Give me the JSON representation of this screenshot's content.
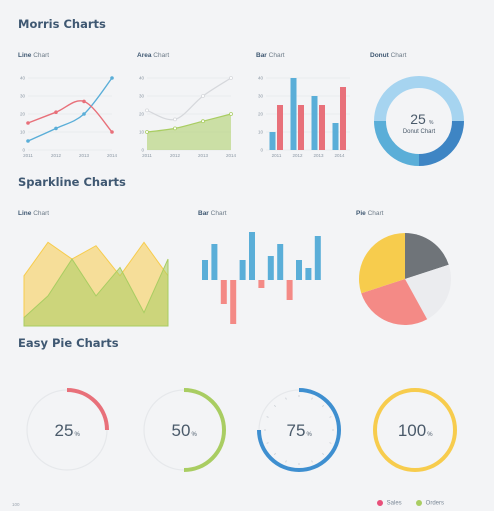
{
  "sections": {
    "morris": "Morris Charts",
    "sparkline": "Sparkline Charts",
    "easy_pie": "Easy Pie Charts"
  },
  "morris_labels": {
    "line": [
      "Line",
      "Chart"
    ],
    "area": [
      "Area",
      "Chart"
    ],
    "bar": [
      "Bar",
      "Chart"
    ],
    "donut": [
      "Donut",
      "Chart"
    ]
  },
  "sparkline_labels": {
    "line": [
      "Line",
      "Chart"
    ],
    "bar": [
      "Bar",
      "Chart"
    ],
    "pie": [
      "Pie",
      "Chart"
    ]
  },
  "colors": {
    "red": "#e8707a",
    "blue": "#5aaed8",
    "green": "#a9cd62",
    "yellow": "#f7cc4d",
    "gray": "#6f7479",
    "light_gray": "#ebecef",
    "pink": "#f48a86"
  },
  "chart_data": [
    {
      "id": "morris-line",
      "type": "line",
      "x": [
        "2011",
        "2012",
        "2013",
        "2014"
      ],
      "yticks": [
        "0",
        "10",
        "20",
        "30",
        "40"
      ],
      "ylim": [
        0,
        40
      ],
      "series": [
        {
          "values": [
            5,
            12,
            20,
            40
          ],
          "color": "#5aaed8"
        },
        {
          "values": [
            15,
            21,
            27,
            10
          ],
          "color": "#e8707a"
        }
      ]
    },
    {
      "id": "morris-area",
      "type": "area",
      "x": [
        "2011",
        "2012",
        "2013",
        "2014"
      ],
      "yticks": [
        "0",
        "10",
        "20",
        "30",
        "40"
      ],
      "ylim": [
        0,
        40
      ],
      "series": [
        {
          "values": [
            22,
            17,
            30,
            40
          ],
          "color": "#d6d8dc"
        },
        {
          "values": [
            10,
            12,
            16,
            20
          ],
          "color": "#a9cd62"
        }
      ]
    },
    {
      "id": "morris-bar",
      "type": "bar",
      "categories": [
        "2011",
        "2012",
        "2013",
        "2014"
      ],
      "yticks": [
        "0",
        "10",
        "20",
        "30",
        "40"
      ],
      "ylim": [
        0,
        40
      ],
      "series": [
        {
          "values": [
            10,
            40,
            30,
            15
          ],
          "color": "#5aaed8"
        },
        {
          "values": [
            25,
            25,
            25,
            35
          ],
          "color": "#e8707a"
        }
      ]
    },
    {
      "id": "morris-donut",
      "type": "pie",
      "center_value": "25",
      "center_unit": "%",
      "center_label": "Donut Chart",
      "values": [
        25,
        25,
        50
      ],
      "colors": [
        "#3e85c4",
        "#5aaed8",
        "#a6d4f0"
      ]
    },
    {
      "id": "spark-line",
      "type": "area",
      "series": [
        {
          "values": [
            30,
            50,
            40,
            48,
            30,
            50,
            30
          ],
          "color": "#f7cc4d"
        },
        {
          "values": [
            5,
            18,
            40,
            18,
            35,
            8,
            40
          ],
          "color": "#a9cd62"
        }
      ]
    },
    {
      "id": "spark-bar",
      "type": "bar",
      "values": [
        5,
        9,
        -6,
        -11,
        5,
        12,
        -2,
        6,
        9,
        -5,
        5,
        3,
        11
      ],
      "color_pos": "#5aaed8",
      "color_neg": "#f48a86"
    },
    {
      "id": "spark-pie",
      "type": "pie",
      "values": [
        20,
        22,
        28,
        30
      ],
      "colors": [
        "#6f7479",
        "#ebecef",
        "#f48a86",
        "#f7cc4d"
      ]
    },
    {
      "id": "easy-pie",
      "type": "pie",
      "items": [
        {
          "value": 25,
          "label": "25",
          "unit": "%",
          "color": "#e8707a"
        },
        {
          "value": 50,
          "label": "50",
          "unit": "%",
          "color": "#a9cd62"
        },
        {
          "value": 75,
          "label": "75",
          "unit": "%",
          "color": "#3e8fd0"
        },
        {
          "value": 100,
          "label": "100",
          "unit": "%",
          "color": "#f7cc4d"
        }
      ]
    }
  ],
  "legend": [
    {
      "label": "Sales",
      "color": "#e8507a"
    },
    {
      "label": "Orders",
      "color": "#a9cd62"
    }
  ],
  "page_number": "100"
}
